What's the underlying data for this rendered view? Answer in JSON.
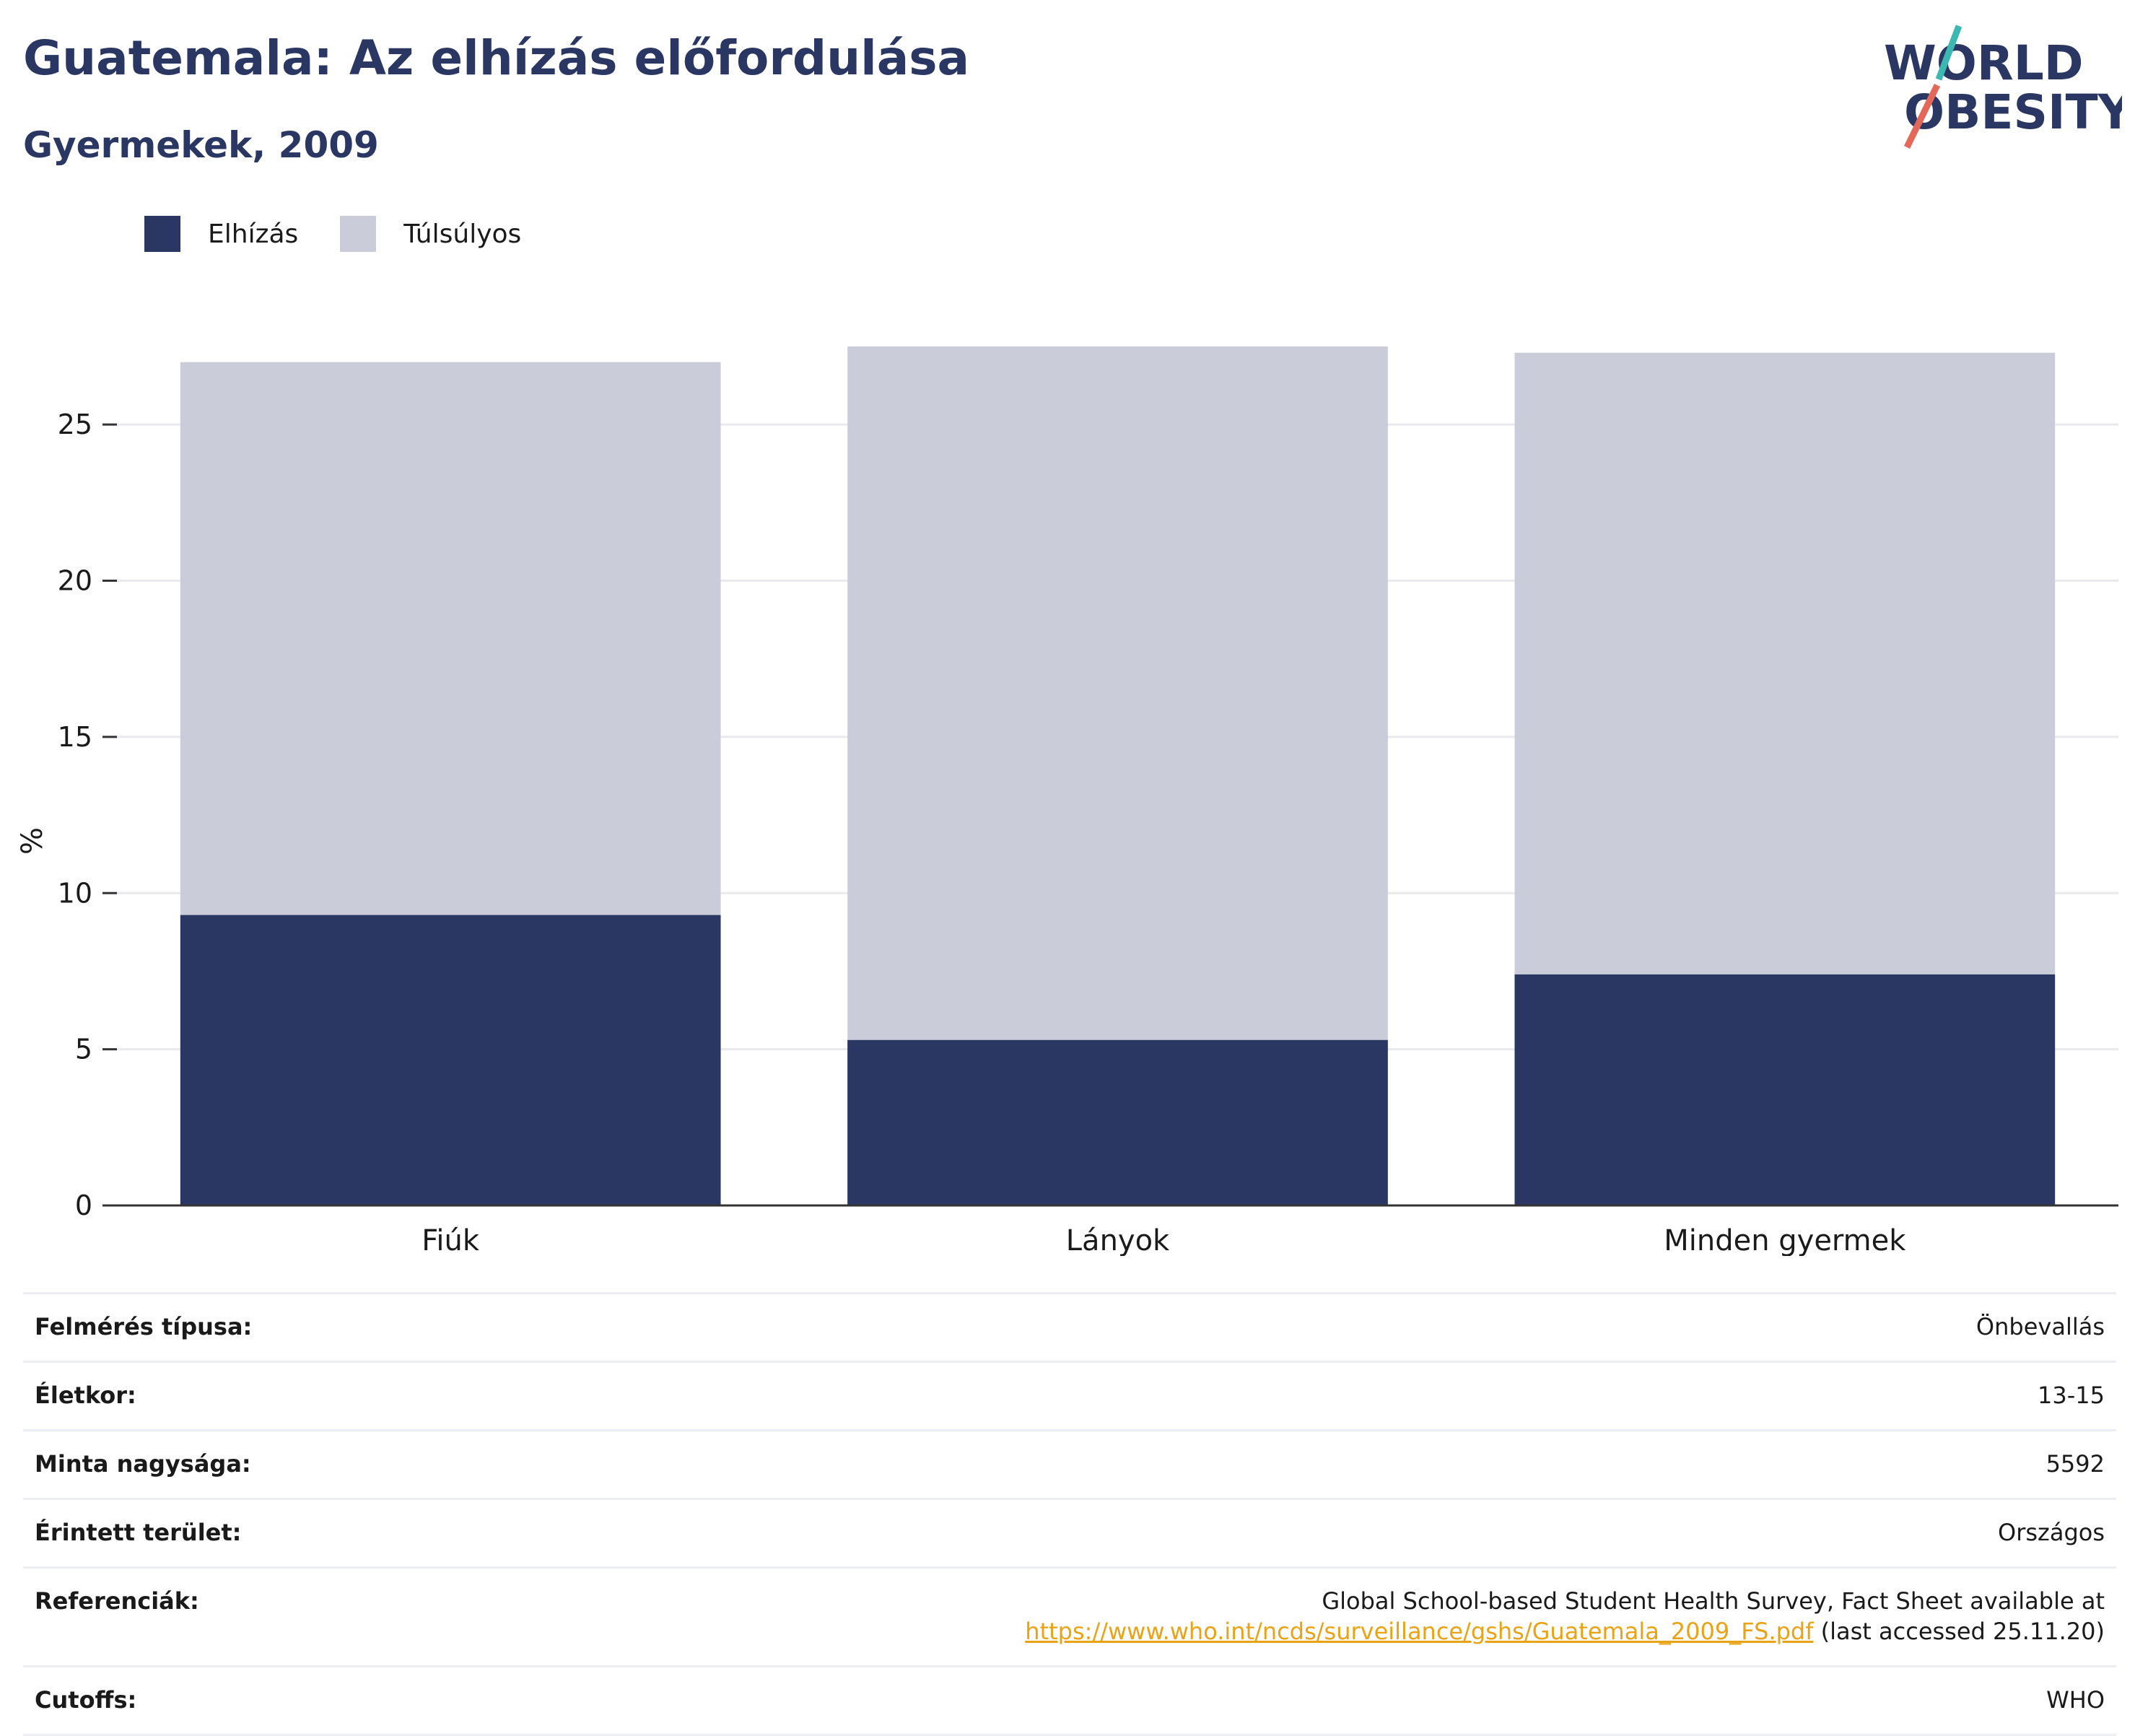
{
  "header": {
    "title": "Guatemala: Az elhízás előfordulása",
    "subtitle": "Gyermekek, 2009"
  },
  "logo": {
    "line1": "WORLD",
    "line2": "OBESITY",
    "icon": "world-obesity-logo"
  },
  "colors": {
    "obesity": "#2b3763",
    "overweight": "#cacdd9",
    "slash_teal": "#3cb8b2",
    "slash_coral": "#e4685a",
    "link": "#e8a317"
  },
  "chart_data": {
    "type": "bar",
    "stacked": true,
    "categories": [
      "Fiúk",
      "Lányok",
      "Minden gyermek"
    ],
    "series": [
      {
        "name": "Elhízás",
        "values": [
          9.3,
          5.3,
          7.4
        ]
      },
      {
        "name": "Túlsúlyos",
        "values": [
          17.7,
          22.2,
          19.9
        ]
      }
    ],
    "title": "",
    "xlabel": "",
    "ylabel": "%",
    "ylim": [
      0,
      27.5
    ],
    "yticks": [
      0,
      5,
      10,
      15,
      20,
      25
    ],
    "grid": true,
    "legend": "top-left"
  },
  "info": {
    "survey_type": {
      "label": "Felmérés típusa:",
      "value": "Önbevallás"
    },
    "age": {
      "label": "Életkor:",
      "value": "13-15"
    },
    "sample": {
      "label": "Minta nagysága:",
      "value": "5592"
    },
    "area": {
      "label": "Érintett terület:",
      "value": "Országos"
    },
    "references": {
      "label": "Referenciák:",
      "line1": "Global School-based Student Health Survey, Fact Sheet available at",
      "link": "https://www.who.int/ncds/surveillance/gshs/Guatemala_2009_FS.pdf",
      "suffix": " (last accessed 25.11.20)"
    },
    "cutoffs": {
      "label": "Cutoffs:",
      "value": "WHO"
    }
  }
}
